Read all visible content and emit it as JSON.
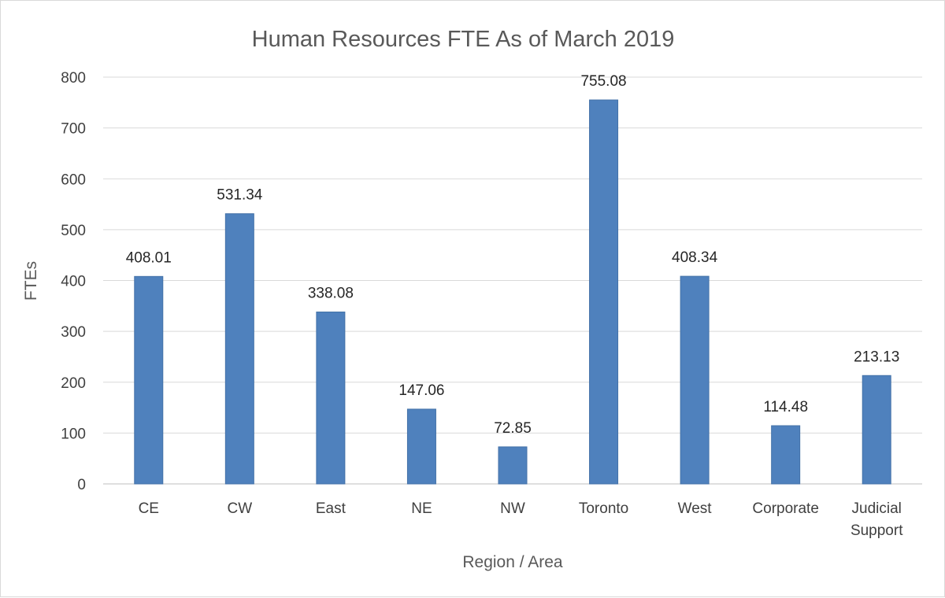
{
  "chart_data": {
    "type": "bar",
    "title": "Human Resources FTE As of March 2019",
    "xlabel": "Region / Area",
    "ylabel": "FTEs",
    "categories": [
      "CE",
      "CW",
      "East",
      "NE",
      "NW",
      "Toronto",
      "West",
      "Corporate",
      "Judicial Support"
    ],
    "values": [
      408.01,
      531.34,
      338.08,
      147.06,
      72.85,
      755.08,
      408.34,
      114.48,
      213.13
    ],
    "data_labels": [
      "408.01",
      "531.34",
      "338.08",
      "147.06",
      "72.85",
      "755.08",
      "408.34",
      "114.48",
      "213.13"
    ],
    "ylim": [
      0,
      800
    ],
    "yticks": [
      0,
      100,
      200,
      300,
      400,
      500,
      600,
      700,
      800
    ],
    "grid": true,
    "legend": "none",
    "bar_color": "#4f81bd",
    "bar_edge_color": "#4472a8"
  }
}
